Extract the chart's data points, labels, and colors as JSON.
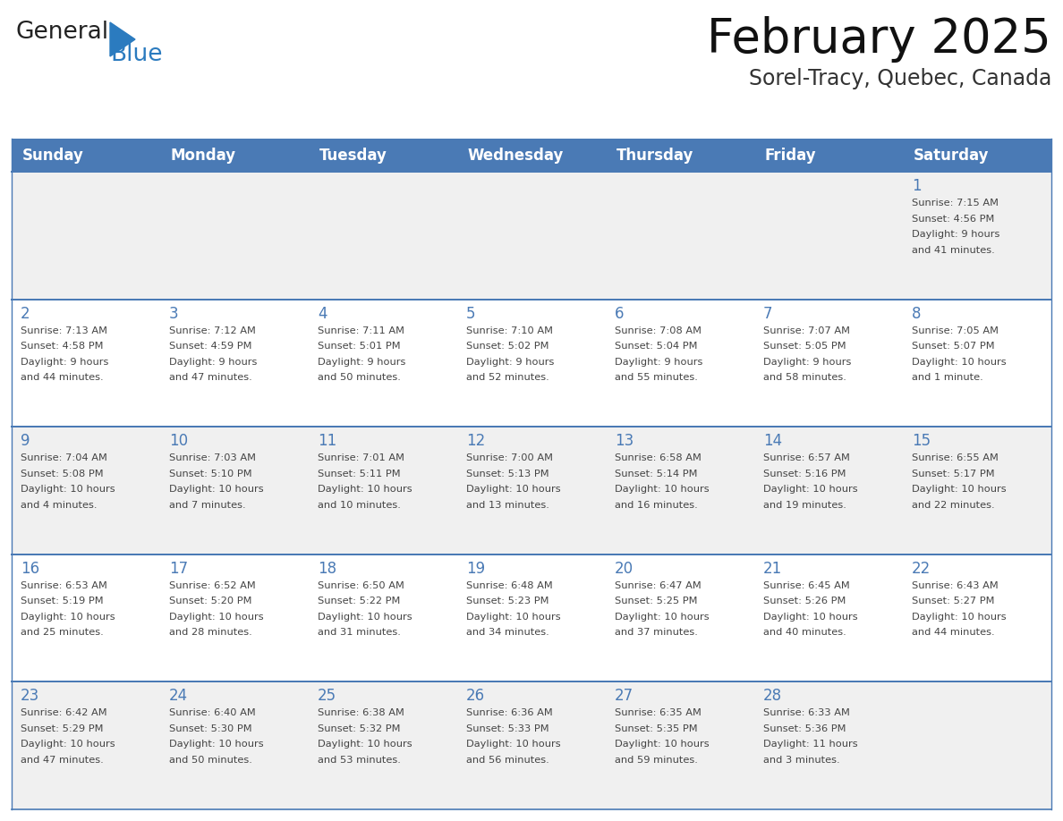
{
  "title": "February 2025",
  "subtitle": "Sorel-Tracy, Quebec, Canada",
  "days_of_week": [
    "Sunday",
    "Monday",
    "Tuesday",
    "Wednesday",
    "Thursday",
    "Friday",
    "Saturday"
  ],
  "header_bg": "#4a7ab5",
  "header_text_color": "#ffffff",
  "cell_bg_odd": "#f0f0f0",
  "cell_bg_even": "#ffffff",
  "day_num_color": "#4a7ab5",
  "text_color": "#444444",
  "line_color": "#4a7ab5",
  "calendar": [
    [
      null,
      null,
      null,
      null,
      null,
      null,
      {
        "day": 1,
        "sunrise": "7:15 AM",
        "sunset": "4:56 PM",
        "daylight": "9 hours\nand 41 minutes."
      }
    ],
    [
      {
        "day": 2,
        "sunrise": "7:13 AM",
        "sunset": "4:58 PM",
        "daylight": "9 hours\nand 44 minutes."
      },
      {
        "day": 3,
        "sunrise": "7:12 AM",
        "sunset": "4:59 PM",
        "daylight": "9 hours\nand 47 minutes."
      },
      {
        "day": 4,
        "sunrise": "7:11 AM",
        "sunset": "5:01 PM",
        "daylight": "9 hours\nand 50 minutes."
      },
      {
        "day": 5,
        "sunrise": "7:10 AM",
        "sunset": "5:02 PM",
        "daylight": "9 hours\nand 52 minutes."
      },
      {
        "day": 6,
        "sunrise": "7:08 AM",
        "sunset": "5:04 PM",
        "daylight": "9 hours\nand 55 minutes."
      },
      {
        "day": 7,
        "sunrise": "7:07 AM",
        "sunset": "5:05 PM",
        "daylight": "9 hours\nand 58 minutes."
      },
      {
        "day": 8,
        "sunrise": "7:05 AM",
        "sunset": "5:07 PM",
        "daylight": "10 hours\nand 1 minute."
      }
    ],
    [
      {
        "day": 9,
        "sunrise": "7:04 AM",
        "sunset": "5:08 PM",
        "daylight": "10 hours\nand 4 minutes."
      },
      {
        "day": 10,
        "sunrise": "7:03 AM",
        "sunset": "5:10 PM",
        "daylight": "10 hours\nand 7 minutes."
      },
      {
        "day": 11,
        "sunrise": "7:01 AM",
        "sunset": "5:11 PM",
        "daylight": "10 hours\nand 10 minutes."
      },
      {
        "day": 12,
        "sunrise": "7:00 AM",
        "sunset": "5:13 PM",
        "daylight": "10 hours\nand 13 minutes."
      },
      {
        "day": 13,
        "sunrise": "6:58 AM",
        "sunset": "5:14 PM",
        "daylight": "10 hours\nand 16 minutes."
      },
      {
        "day": 14,
        "sunrise": "6:57 AM",
        "sunset": "5:16 PM",
        "daylight": "10 hours\nand 19 minutes."
      },
      {
        "day": 15,
        "sunrise": "6:55 AM",
        "sunset": "5:17 PM",
        "daylight": "10 hours\nand 22 minutes."
      }
    ],
    [
      {
        "day": 16,
        "sunrise": "6:53 AM",
        "sunset": "5:19 PM",
        "daylight": "10 hours\nand 25 minutes."
      },
      {
        "day": 17,
        "sunrise": "6:52 AM",
        "sunset": "5:20 PM",
        "daylight": "10 hours\nand 28 minutes."
      },
      {
        "day": 18,
        "sunrise": "6:50 AM",
        "sunset": "5:22 PM",
        "daylight": "10 hours\nand 31 minutes."
      },
      {
        "day": 19,
        "sunrise": "6:48 AM",
        "sunset": "5:23 PM",
        "daylight": "10 hours\nand 34 minutes."
      },
      {
        "day": 20,
        "sunrise": "6:47 AM",
        "sunset": "5:25 PM",
        "daylight": "10 hours\nand 37 minutes."
      },
      {
        "day": 21,
        "sunrise": "6:45 AM",
        "sunset": "5:26 PM",
        "daylight": "10 hours\nand 40 minutes."
      },
      {
        "day": 22,
        "sunrise": "6:43 AM",
        "sunset": "5:27 PM",
        "daylight": "10 hours\nand 44 minutes."
      }
    ],
    [
      {
        "day": 23,
        "sunrise": "6:42 AM",
        "sunset": "5:29 PM",
        "daylight": "10 hours\nand 47 minutes."
      },
      {
        "day": 24,
        "sunrise": "6:40 AM",
        "sunset": "5:30 PM",
        "daylight": "10 hours\nand 50 minutes."
      },
      {
        "day": 25,
        "sunrise": "6:38 AM",
        "sunset": "5:32 PM",
        "daylight": "10 hours\nand 53 minutes."
      },
      {
        "day": 26,
        "sunrise": "6:36 AM",
        "sunset": "5:33 PM",
        "daylight": "10 hours\nand 56 minutes."
      },
      {
        "day": 27,
        "sunrise": "6:35 AM",
        "sunset": "5:35 PM",
        "daylight": "10 hours\nand 59 minutes."
      },
      {
        "day": 28,
        "sunrise": "6:33 AM",
        "sunset": "5:36 PM",
        "daylight": "11 hours\nand 3 minutes."
      },
      null
    ]
  ],
  "logo_general_color": "#222222",
  "logo_blue_color": "#2b7bbf",
  "logo_triangle_color": "#2b7bbf",
  "figsize": [
    11.88,
    9.18
  ],
  "dpi": 100
}
